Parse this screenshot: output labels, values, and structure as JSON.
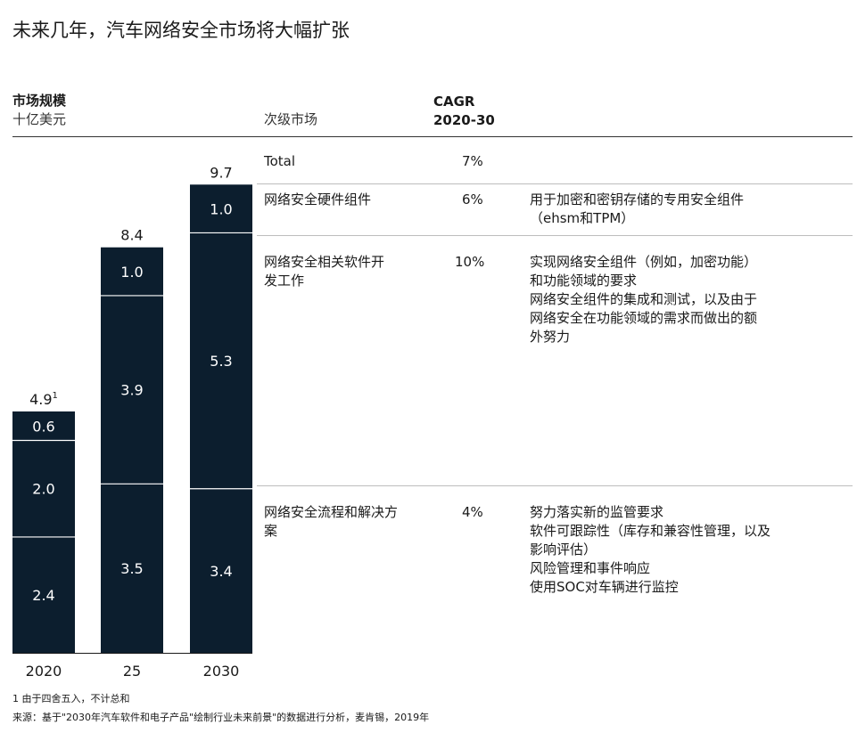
{
  "title": "未来几年，汽车网络安全市场将大幅扩张",
  "header": {
    "market_size_label": "市场规模",
    "unit_label": "十亿美元",
    "submarket_label": "次级市场",
    "cagr_label": "CAGR",
    "cagr_period": "2020-30"
  },
  "chart_data": {
    "type": "bar",
    "stacked": true,
    "categories": [
      "2020",
      "25",
      "2030"
    ],
    "series": [
      {
        "values": [
          2.4,
          3.5,
          3.4
        ],
        "color": "#0c1e2e"
      },
      {
        "values": [
          2.0,
          3.9,
          5.3
        ],
        "color": "#0c1e2e"
      },
      {
        "values": [
          0.6,
          1.0,
          1.0
        ],
        "color": "#0c1e2e"
      }
    ],
    "value_labels": [
      [
        "2.4",
        "2.0",
        "0.6"
      ],
      [
        "3.5",
        "3.9",
        "1.0"
      ],
      [
        "3.4",
        "5.3",
        "1.0"
      ]
    ],
    "totals": [
      4.9,
      8.4,
      9.7
    ],
    "total_labels": [
      "4.9",
      "8.4",
      "9.7"
    ],
    "total_footnote_marks": [
      "1",
      "",
      ""
    ],
    "xlabel": "",
    "ylabel": "市场规模",
    "ylim": [
      0,
      9.7
    ]
  },
  "rows": [
    {
      "name": "Total",
      "cagr": "7%",
      "desc": ""
    },
    {
      "name": "网络安全硬件组件",
      "cagr": "6%",
      "desc": "用于加密和密钥存储的专用安全组件\n（ehsm和TPM）"
    },
    {
      "name": "网络安全相关软件开\n发工作",
      "cagr": "10%",
      "desc": "实现网络安全组件（例如，加密功能）\n和功能领域的要求\n网络安全组件的集成和测试，以及由于\n网络安全在功能领域的需求而做出的额\n外努力"
    },
    {
      "name": "网络安全流程和解决方\n案",
      "cagr": "4%",
      "desc": "努力落实新的监管要求\n软件可跟踪性（库存和兼容性管理，以及\n影响评估）\n风险管理和事件响应\n使用SOC对车辆进行监控"
    }
  ],
  "footnotes": {
    "note1": "1  由于四舍五入，不计总和",
    "source": "来源：基于\"2030年汽车软件和电子产品\"绘制行业未来前景\"的数据进行分析，麦肯锡，2019年"
  }
}
